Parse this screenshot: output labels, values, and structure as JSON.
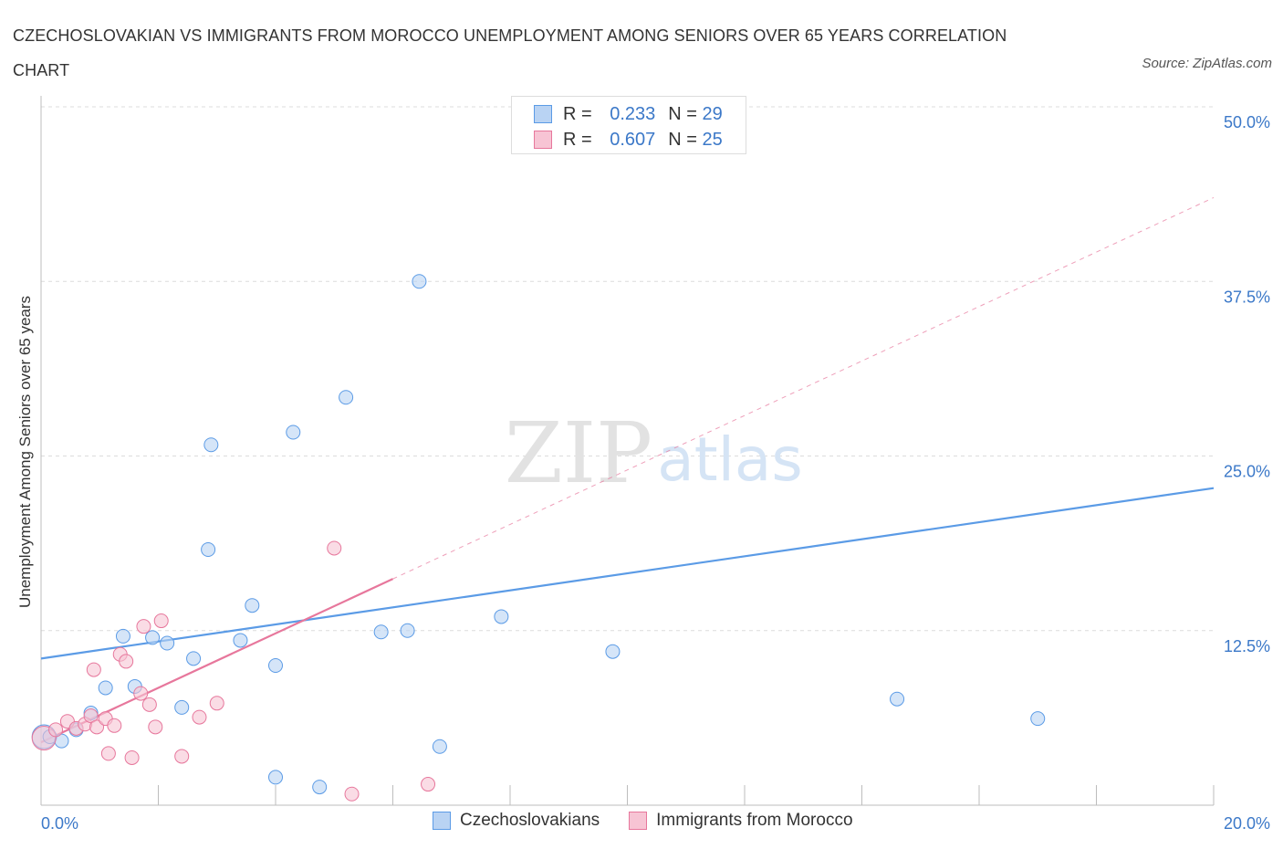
{
  "chart_data": {
    "type": "scatter",
    "title": "CZECHOSLOVAKIAN VS IMMIGRANTS FROM MOROCCO UNEMPLOYMENT AMONG SENIORS OVER 65 YEARS CORRELATION CHART",
    "source": "Source: ZipAtlas.com",
    "xlabel": "",
    "ylabel": "Unemployment Among Seniors over 65 years",
    "xlim": [
      0,
      20
    ],
    "ylim": [
      0,
      50
    ],
    "x_tick_labels": [
      "0.0%",
      "20.0%"
    ],
    "y_ticks": [
      12.5,
      25.0,
      37.5,
      50.0
    ],
    "y_tick_labels": [
      "12.5%",
      "25.0%",
      "37.5%",
      "50.0%"
    ],
    "grid": true,
    "watermark": "ZIPatlas",
    "legend": {
      "rows": [
        {
          "r_label": "R =",
          "r_value": "0.233",
          "n_label": "N =",
          "n_value": "29"
        },
        {
          "r_label": "R =",
          "r_value": "0.607",
          "n_label": "N =",
          "n_value": "25"
        }
      ]
    },
    "series": [
      {
        "name": "Czechoslovakians",
        "color": "#5b9be6",
        "fill": "#b9d3f3",
        "points": [
          [
            0.05,
            4.9
          ],
          [
            0.15,
            4.9
          ],
          [
            0.35,
            4.6
          ],
          [
            0.6,
            5.4
          ],
          [
            0.85,
            6.6
          ],
          [
            1.1,
            8.4
          ],
          [
            1.4,
            12.1
          ],
          [
            1.6,
            8.5
          ],
          [
            1.9,
            12.0
          ],
          [
            2.15,
            11.6
          ],
          [
            2.4,
            7.0
          ],
          [
            2.6,
            10.5
          ],
          [
            2.85,
            18.3
          ],
          [
            2.9,
            25.8
          ],
          [
            3.4,
            11.8
          ],
          [
            3.6,
            14.3
          ],
          [
            4.0,
            2.0
          ],
          [
            4.0,
            10.0
          ],
          [
            4.3,
            26.7
          ],
          [
            4.75,
            1.3
          ],
          [
            5.2,
            29.2
          ],
          [
            5.8,
            12.4
          ],
          [
            6.25,
            12.5
          ],
          [
            6.45,
            37.5
          ],
          [
            6.8,
            4.2
          ],
          [
            7.85,
            13.5
          ],
          [
            9.75,
            11.0
          ],
          [
            14.6,
            7.6
          ],
          [
            17.0,
            6.2
          ]
        ],
        "trend": {
          "x": [
            0,
            20
          ],
          "y": [
            10.5,
            22.7
          ],
          "style": "solid"
        }
      },
      {
        "name": "Immigrants from Morocco",
        "color": "#e7779c",
        "fill": "#f7c4d4",
        "points": [
          [
            0.05,
            4.8
          ],
          [
            0.25,
            5.4
          ],
          [
            0.45,
            6.0
          ],
          [
            0.6,
            5.5
          ],
          [
            0.75,
            5.8
          ],
          [
            0.85,
            6.4
          ],
          [
            0.9,
            9.7
          ],
          [
            0.95,
            5.6
          ],
          [
            1.1,
            6.2
          ],
          [
            1.15,
            3.7
          ],
          [
            1.25,
            5.7
          ],
          [
            1.35,
            10.8
          ],
          [
            1.45,
            10.3
          ],
          [
            1.55,
            3.4
          ],
          [
            1.7,
            8.0
          ],
          [
            1.75,
            12.8
          ],
          [
            1.85,
            7.2
          ],
          [
            1.95,
            5.6
          ],
          [
            2.05,
            13.2
          ],
          [
            2.4,
            3.5
          ],
          [
            2.7,
            6.3
          ],
          [
            3.0,
            7.3
          ],
          [
            5.0,
            18.4
          ],
          [
            5.3,
            0.8
          ],
          [
            6.6,
            1.5
          ]
        ],
        "trend": {
          "x": [
            0,
            6.0
          ],
          "y": [
            4.5,
            16.2
          ],
          "style": "solid"
        },
        "trend_extension": {
          "x": [
            6.0,
            20
          ],
          "y": [
            16.2,
            43.5
          ],
          "style": "dashed"
        }
      }
    ]
  }
}
